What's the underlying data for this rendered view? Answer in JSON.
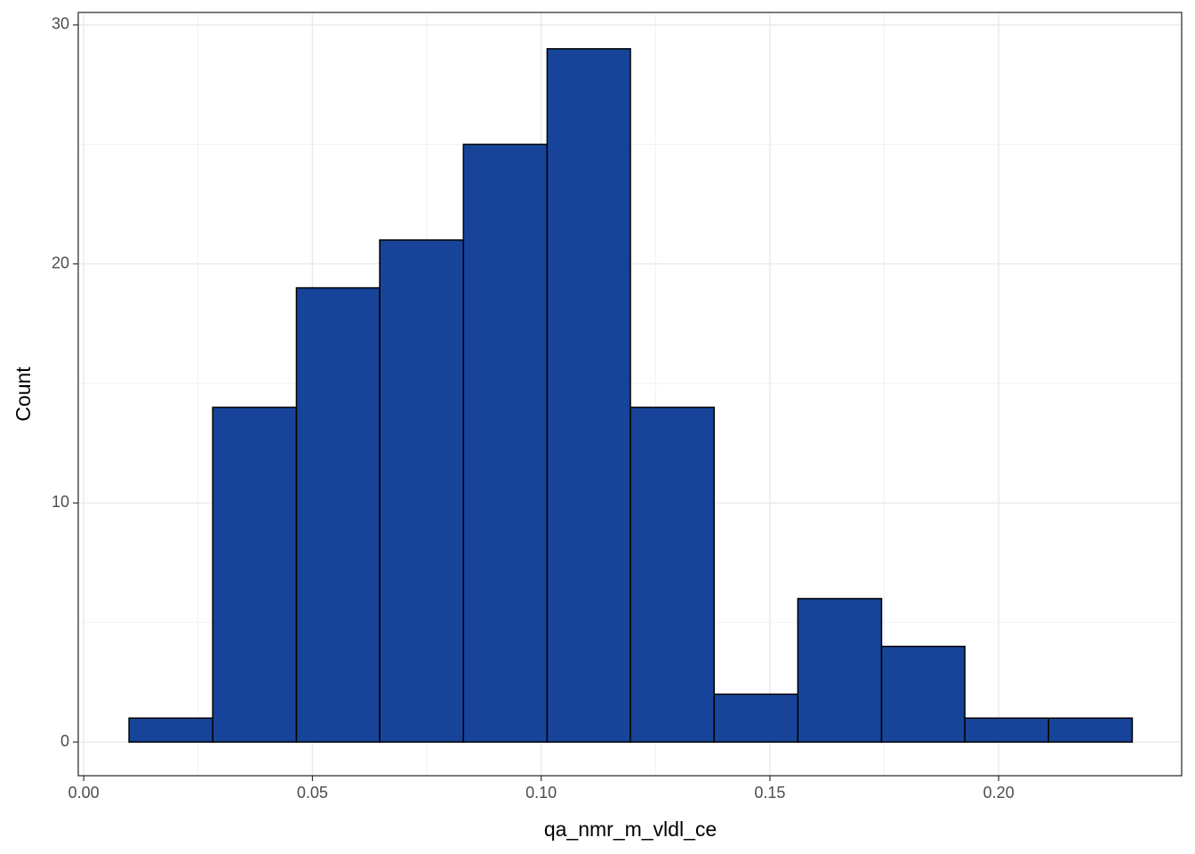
{
  "chart_data": {
    "type": "histogram",
    "x_label": "qa_nmr_m_vldl_ce",
    "y_label": "Count",
    "bins": [
      0.0099,
      0.0282,
      0.0465,
      0.0647,
      0.083,
      0.1013,
      0.1195,
      0.1378,
      0.1561,
      0.1744,
      0.1926,
      0.2109,
      0.2292
    ],
    "values": [
      1,
      14,
      19,
      21,
      25,
      29,
      14,
      2,
      6,
      4,
      1,
      1
    ],
    "color": "#174499",
    "xlim": [
      -0.0012,
      0.24
    ],
    "ylim": [
      -1.41,
      30.52
    ],
    "xticks": [
      {
        "value": 0,
        "label": "0.00"
      },
      {
        "value": 0.05,
        "label": "0.05"
      },
      {
        "value": 0.1,
        "label": "0.10"
      },
      {
        "value": 0.15,
        "label": "0.15"
      },
      {
        "value": 0.2,
        "label": "0.20"
      }
    ],
    "yticks": [
      0,
      10,
      20,
      30
    ],
    "grid": true
  }
}
